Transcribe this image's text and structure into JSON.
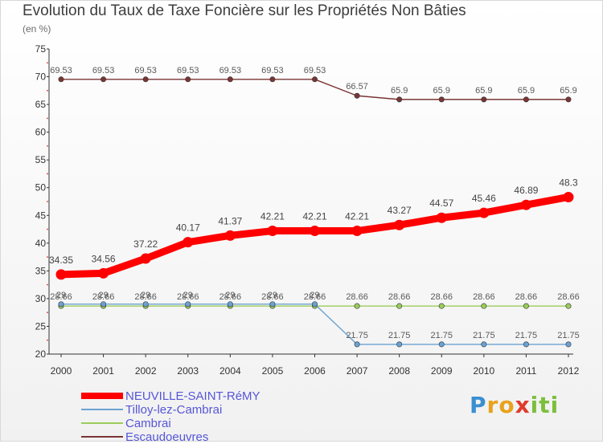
{
  "chart_data": {
    "type": "line",
    "title": "Evolution du Taux de Taxe Foncière sur les Propriétés Non Bâties",
    "subtitle": "(en %)",
    "xlabel": "",
    "ylabel": "",
    "categories": [
      "2000",
      "2001",
      "2002",
      "2003",
      "2004",
      "2005",
      "2006",
      "2007",
      "2008",
      "2009",
      "2010",
      "2011",
      "2012"
    ],
    "ylim": [
      20,
      75
    ],
    "yticks": [
      "20",
      "25",
      "30",
      "35",
      "40",
      "45",
      "50",
      "55",
      "60",
      "65",
      "70",
      "75"
    ],
    "grid": false,
    "legend_position": "bottom-left",
    "series": [
      {
        "name": "NEUVILLE-SAINT-RéMY",
        "color": "#ff0000",
        "values": [
          34.35,
          34.56,
          37.22,
          40.17,
          41.37,
          42.21,
          42.21,
          42.21,
          43.27,
          44.57,
          45.46,
          46.89,
          48.3
        ],
        "labels": [
          "34.35",
          "34.56",
          "37.22",
          "40.17",
          "41.37",
          "42.21",
          "42.21",
          "42.21",
          "43.27",
          "44.57",
          "45.46",
          "46.89",
          "48.3"
        ]
      },
      {
        "name": "Tilloy-lez-Cambrai",
        "color": "#6aa2d2",
        "values": [
          29,
          29,
          29,
          29,
          29,
          29,
          29,
          21.75,
          21.75,
          21.75,
          21.75,
          21.75,
          21.75
        ],
        "labels": [
          "29",
          "29",
          "29",
          "29",
          "29",
          "29",
          "29",
          "21.75",
          "21.75",
          "21.75",
          "21.75",
          "21.75",
          "21.75"
        ]
      },
      {
        "name": "Cambrai",
        "color": "#9acd5a",
        "values": [
          28.66,
          28.66,
          28.66,
          28.66,
          28.66,
          28.66,
          28.66,
          28.66,
          28.66,
          28.66,
          28.66,
          28.66,
          28.66
        ],
        "labels": [
          "28.66",
          "28.66",
          "28.66",
          "28.66",
          "28.66",
          "28.66",
          "28.66",
          "28.66",
          "28.66",
          "28.66",
          "28.66",
          "28.66",
          "28.66"
        ]
      },
      {
        "name": "Escaudoeuvres",
        "color": "#7a3535",
        "values": [
          69.53,
          69.53,
          69.53,
          69.53,
          69.53,
          69.53,
          69.53,
          66.57,
          65.9,
          65.9,
          65.9,
          65.9,
          65.9
        ],
        "labels": [
          "69.53",
          "69.53",
          "69.53",
          "69.53",
          "69.53",
          "69.53",
          "69.53",
          "66.57",
          "65.9",
          "65.9",
          "65.9",
          "65.9",
          "65.9"
        ]
      }
    ]
  },
  "legend": {
    "items": [
      {
        "label": "NEUVILLE-SAINT-RéMY",
        "color": "#ff0000"
      },
      {
        "label": "Tilloy-lez-Cambrai",
        "color": "#6aa2d2"
      },
      {
        "label": "Cambrai",
        "color": "#9acd5a"
      },
      {
        "label": "Escaudoeuvres",
        "color": "#7a3535"
      }
    ]
  },
  "logo": {
    "letters": [
      "P",
      "r",
      "o",
      "x",
      "i",
      "t",
      "i"
    ],
    "colors": [
      "#3a8fd0",
      "#e8a21c",
      "#e8a21c",
      "#e03a2c",
      "#7cbf3c",
      "#7cbf3c",
      "#7cbf3c"
    ]
  }
}
